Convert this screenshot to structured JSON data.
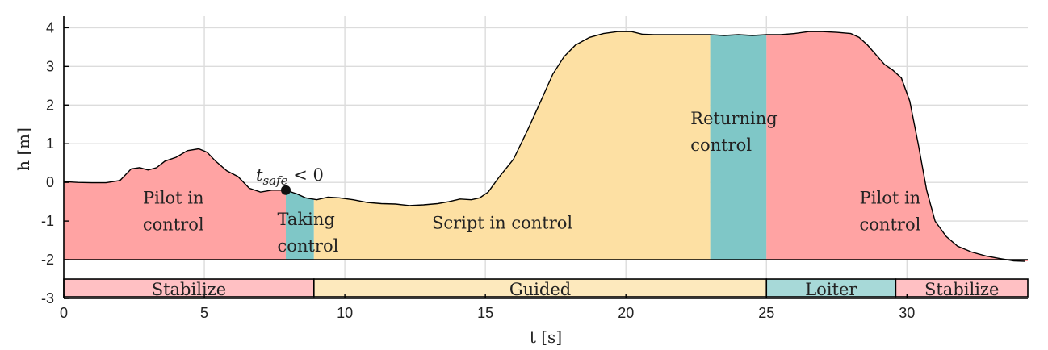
{
  "chart_data": {
    "type": "area",
    "xlabel": "t [s]",
    "ylabel": "h [m]",
    "xlim": [
      0,
      34.3
    ],
    "ylim": [
      -3,
      4.3
    ],
    "x_ticks": [
      "0",
      "5",
      "10",
      "15",
      "20",
      "25",
      "30"
    ],
    "y_ticks": [
      "-3",
      "-2",
      "-1",
      "0",
      "1",
      "2",
      "3",
      "4"
    ],
    "grid": true,
    "baseline": -2,
    "colors": {
      "pilot": "#ffa3a3",
      "taking": "#7fc7c7",
      "script": "#fde0a3",
      "returning": "#7fc7c7",
      "stabilize": "#ffc0c3",
      "guided": "#fde9bd",
      "loiter": "#a7d9d8"
    },
    "series": [
      {
        "x": [
          0,
          0.5,
          1,
          1.5,
          2,
          2.4,
          2.7,
          3,
          3.3,
          3.6,
          4,
          4.4,
          4.8,
          5.1,
          5.4,
          5.8,
          6.2,
          6.6,
          7,
          7.4,
          7.9,
          8.3,
          8.6,
          9,
          9.4,
          9.8,
          10.3,
          10.8,
          11.3,
          11.8,
          12.3,
          12.8,
          13.3,
          13.7,
          14.1,
          14.5,
          14.8,
          15.1,
          15.5,
          16,
          16.5,
          17,
          17.4,
          17.8,
          18.2,
          18.7,
          19.2,
          19.7,
          20.2,
          20.6,
          21,
          21.5,
          22,
          22.5,
          23,
          23.5,
          24,
          24.5,
          25,
          25.5,
          26,
          26.5,
          27,
          27.5,
          28,
          28.3,
          28.6,
          28.9,
          29.2,
          29.5,
          29.8,
          30.1,
          30.4,
          30.7,
          31,
          31.4,
          31.8,
          32.3,
          32.8,
          33.3,
          33.8,
          34.2
        ],
        "values": [
          0.02,
          0.0,
          -0.01,
          -0.01,
          0.05,
          0.35,
          0.38,
          0.32,
          0.38,
          0.55,
          0.65,
          0.82,
          0.87,
          0.78,
          0.55,
          0.3,
          0.15,
          -0.15,
          -0.25,
          -0.2,
          -0.2,
          -0.3,
          -0.4,
          -0.45,
          -0.38,
          -0.4,
          -0.45,
          -0.52,
          -0.55,
          -0.56,
          -0.6,
          -0.58,
          -0.55,
          -0.5,
          -0.43,
          -0.45,
          -0.4,
          -0.25,
          0.15,
          0.6,
          1.35,
          2.15,
          2.8,
          3.25,
          3.55,
          3.75,
          3.85,
          3.9,
          3.9,
          3.83,
          3.82,
          3.82,
          3.82,
          3.82,
          3.82,
          3.8,
          3.82,
          3.8,
          3.82,
          3.82,
          3.85,
          3.9,
          3.9,
          3.88,
          3.85,
          3.75,
          3.55,
          3.3,
          3.05,
          2.9,
          2.7,
          2.1,
          1.0,
          -0.2,
          -1.0,
          -1.4,
          -1.65,
          -1.8,
          -1.9,
          -1.97,
          -2.03,
          -2.04
        ]
      }
    ],
    "regions": [
      {
        "id": "pilot",
        "x0": 0,
        "x1": 7.9,
        "label": [
          "Pilot in",
          "control"
        ]
      },
      {
        "id": "taking",
        "x0": 7.9,
        "x1": 8.9,
        "label": [
          "Taking",
          "control"
        ]
      },
      {
        "id": "script",
        "x0": 8.9,
        "x1": 23.0,
        "label": [
          "Script in control"
        ]
      },
      {
        "id": "returning",
        "x0": 23.0,
        "x1": 25.0,
        "label": [
          "Returning",
          "control"
        ]
      },
      {
        "id": "pilot",
        "x0": 25.0,
        "x1": 34.3,
        "label": [
          "Pilot in",
          "control"
        ]
      }
    ],
    "modes": [
      {
        "id": "stabilize",
        "x0": 0,
        "x1": 8.9,
        "label": "Stabilize"
      },
      {
        "id": "guided",
        "x0": 8.9,
        "x1": 25.0,
        "label": "Guided"
      },
      {
        "id": "loiter",
        "x0": 25.0,
        "x1": 29.6,
        "label": "Loiter"
      },
      {
        "id": "stabilize",
        "x0": 29.6,
        "x1": 34.3,
        "label": "Stabilize"
      }
    ],
    "mode_band": [
      -2.5,
      -3.0
    ],
    "annotation": {
      "x": 7.9,
      "y": -0.2,
      "text_main": "t",
      "text_sub": "safe",
      "text_rel": " < 0"
    }
  }
}
